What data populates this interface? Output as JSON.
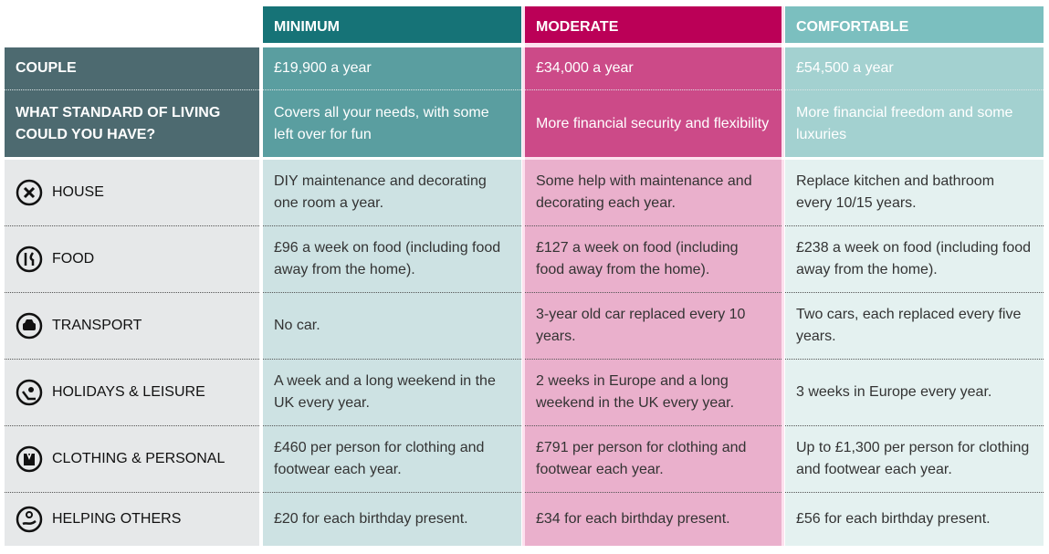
{
  "columns": [
    "MINIMUM",
    "MODERATE",
    "COMFORTABLE"
  ],
  "colors": {
    "minimum": "#167377",
    "moderate": "#bb0057",
    "comfortable": "#7bbfbf",
    "label": "#4d6a70"
  },
  "couple": {
    "label": "COUPLE",
    "values": [
      "£19,900 a year",
      "£34,000 a year",
      "£54,500 a year"
    ]
  },
  "standard": {
    "label": "WHAT STANDARD OF LIVING COULD YOU HAVE?",
    "values": [
      "Covers all your needs, with some left over for fun",
      "More financial security and flexibility",
      "More financial freedom and some luxuries"
    ]
  },
  "rows": [
    {
      "label": "HOUSE",
      "icon": "tools-icon",
      "values": [
        "DIY maintenance and decorating one room a year.",
        "Some help with maintenance and decorating each year.",
        "Replace kitchen and bathroom every 10/15 years."
      ]
    },
    {
      "label": "FOOD",
      "icon": "cutlery-icon",
      "values": [
        "£96 a week on food (including food away from the home).",
        "£127 a week on food (including food away from the home).",
        "£238 a week on food (including food away from the home)."
      ]
    },
    {
      "label": "TRANSPORT",
      "icon": "car-icon",
      "values": [
        "No car.",
        "3-year old car replaced every 10 years.",
        "Two cars, each replaced every five years."
      ]
    },
    {
      "label": "HOLIDAYS & LEISURE",
      "icon": "sun-lounger-icon",
      "values": [
        "A week and a long weekend in the UK every year.",
        "2 weeks in Europe and a long weekend in the UK every year.",
        "3 weeks in Europe every year."
      ]
    },
    {
      "label": "CLOTHING & PERSONAL",
      "icon": "jacket-icon",
      "values": [
        "£460 per person for clothing and footwear each year.",
        "£791 per person for clothing and footwear each year.",
        "Up to £1,300 per person for clothing and footwear each year."
      ]
    },
    {
      "label": "HELPING OTHERS",
      "icon": "helping-hand-icon",
      "values": [
        "£20 for each birthday present.",
        "£34 for each birthday present.",
        "£56 for each birthday present."
      ]
    }
  ]
}
